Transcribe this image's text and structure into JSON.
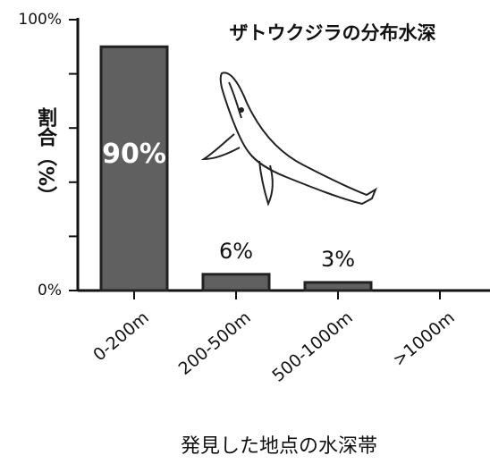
{
  "chart_data": {
    "type": "bar",
    "title": "ザトウクジラの分布水深",
    "x_label": "発見した地点の水深帯",
    "y_label": "割合（%）",
    "categories": [
      "0-200m",
      "200-500m",
      "500-1000m",
      ">1000m"
    ],
    "values": [
      90,
      6,
      3,
      null
    ],
    "value_labels": [
      "90%",
      "6%",
      "3%",
      null
    ],
    "color": "#606060",
    "ylim": [
      0,
      100
    ],
    "yticks": [
      {
        "value": 0,
        "label": "0%"
      },
      {
        "value": 100,
        "label": "100%"
      }
    ],
    "minor_yticks": [
      20,
      40,
      60,
      80
    ]
  }
}
